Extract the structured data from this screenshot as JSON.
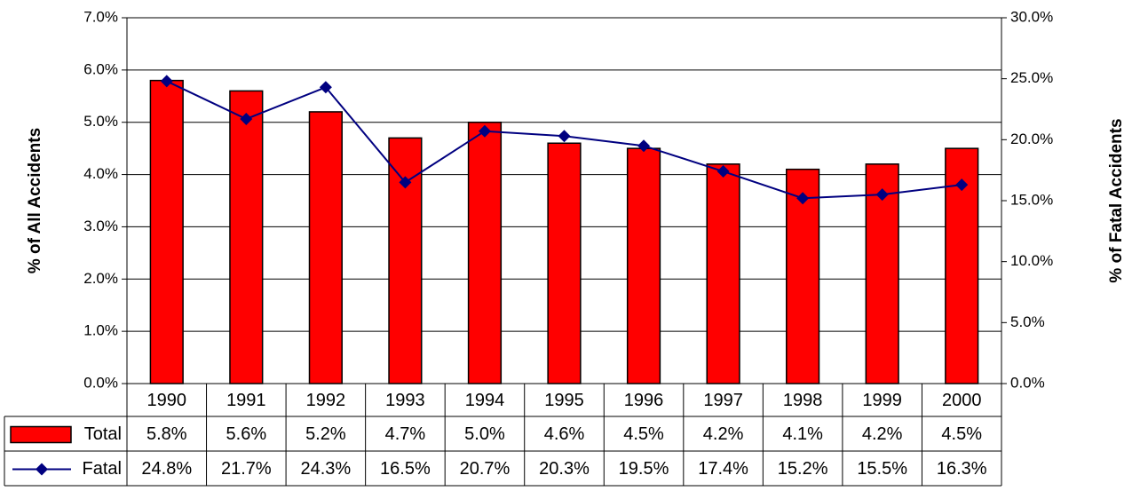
{
  "chart_data": {
    "type": "bar-line",
    "y_label": "% of All Accidents",
    "y2_label": "% of Fatal Accidents",
    "categories": [
      "1990",
      "1991",
      "1992",
      "1993",
      "1994",
      "1995",
      "1996",
      "1997",
      "1998",
      "1999",
      "2000"
    ],
    "series": [
      {
        "name": "Total",
        "type": "bar",
        "color": "#ff0000",
        "axis": "y",
        "values": [
          5.8,
          5.6,
          5.2,
          4.7,
          5.0,
          4.6,
          4.5,
          4.2,
          4.1,
          4.2,
          4.5
        ],
        "value_labels": [
          "5.8%",
          "5.6%",
          "5.2%",
          "4.7%",
          "5.0%",
          "4.6%",
          "4.5%",
          "4.2%",
          "4.1%",
          "4.2%",
          "4.5%"
        ]
      },
      {
        "name": "Fatal",
        "type": "line",
        "color": "#000080",
        "axis": "y2",
        "values": [
          24.8,
          21.7,
          24.3,
          16.5,
          20.7,
          20.3,
          19.5,
          17.4,
          15.2,
          15.5,
          16.3
        ],
        "value_labels": [
          "24.8%",
          "21.7%",
          "24.3%",
          "16.5%",
          "20.7%",
          "20.3%",
          "19.5%",
          "17.4%",
          "15.2%",
          "15.5%",
          "16.3%"
        ]
      }
    ],
    "ylim": [
      0,
      7
    ],
    "yticks": [
      {
        "value": 0,
        "label": "0.0%"
      },
      {
        "value": 1,
        "label": "1.0%"
      },
      {
        "value": 2,
        "label": "2.0%"
      },
      {
        "value": 3,
        "label": "3.0%"
      },
      {
        "value": 4,
        "label": "4.0%"
      },
      {
        "value": 5,
        "label": "5.0%"
      },
      {
        "value": 6,
        "label": "6.0%"
      },
      {
        "value": 7,
        "label": "7.0%"
      }
    ],
    "y2lim": [
      0,
      30
    ],
    "y2ticks": [
      {
        "value": 0,
        "label": "0.0%"
      },
      {
        "value": 5,
        "label": "5.0%"
      },
      {
        "value": 10,
        "label": "10.0%"
      },
      {
        "value": 15,
        "label": "15.0%"
      },
      {
        "value": 20,
        "label": "20.0%"
      },
      {
        "value": 25,
        "label": "25.0%"
      },
      {
        "value": 30,
        "label": "30.0%"
      }
    ],
    "grid": true
  }
}
